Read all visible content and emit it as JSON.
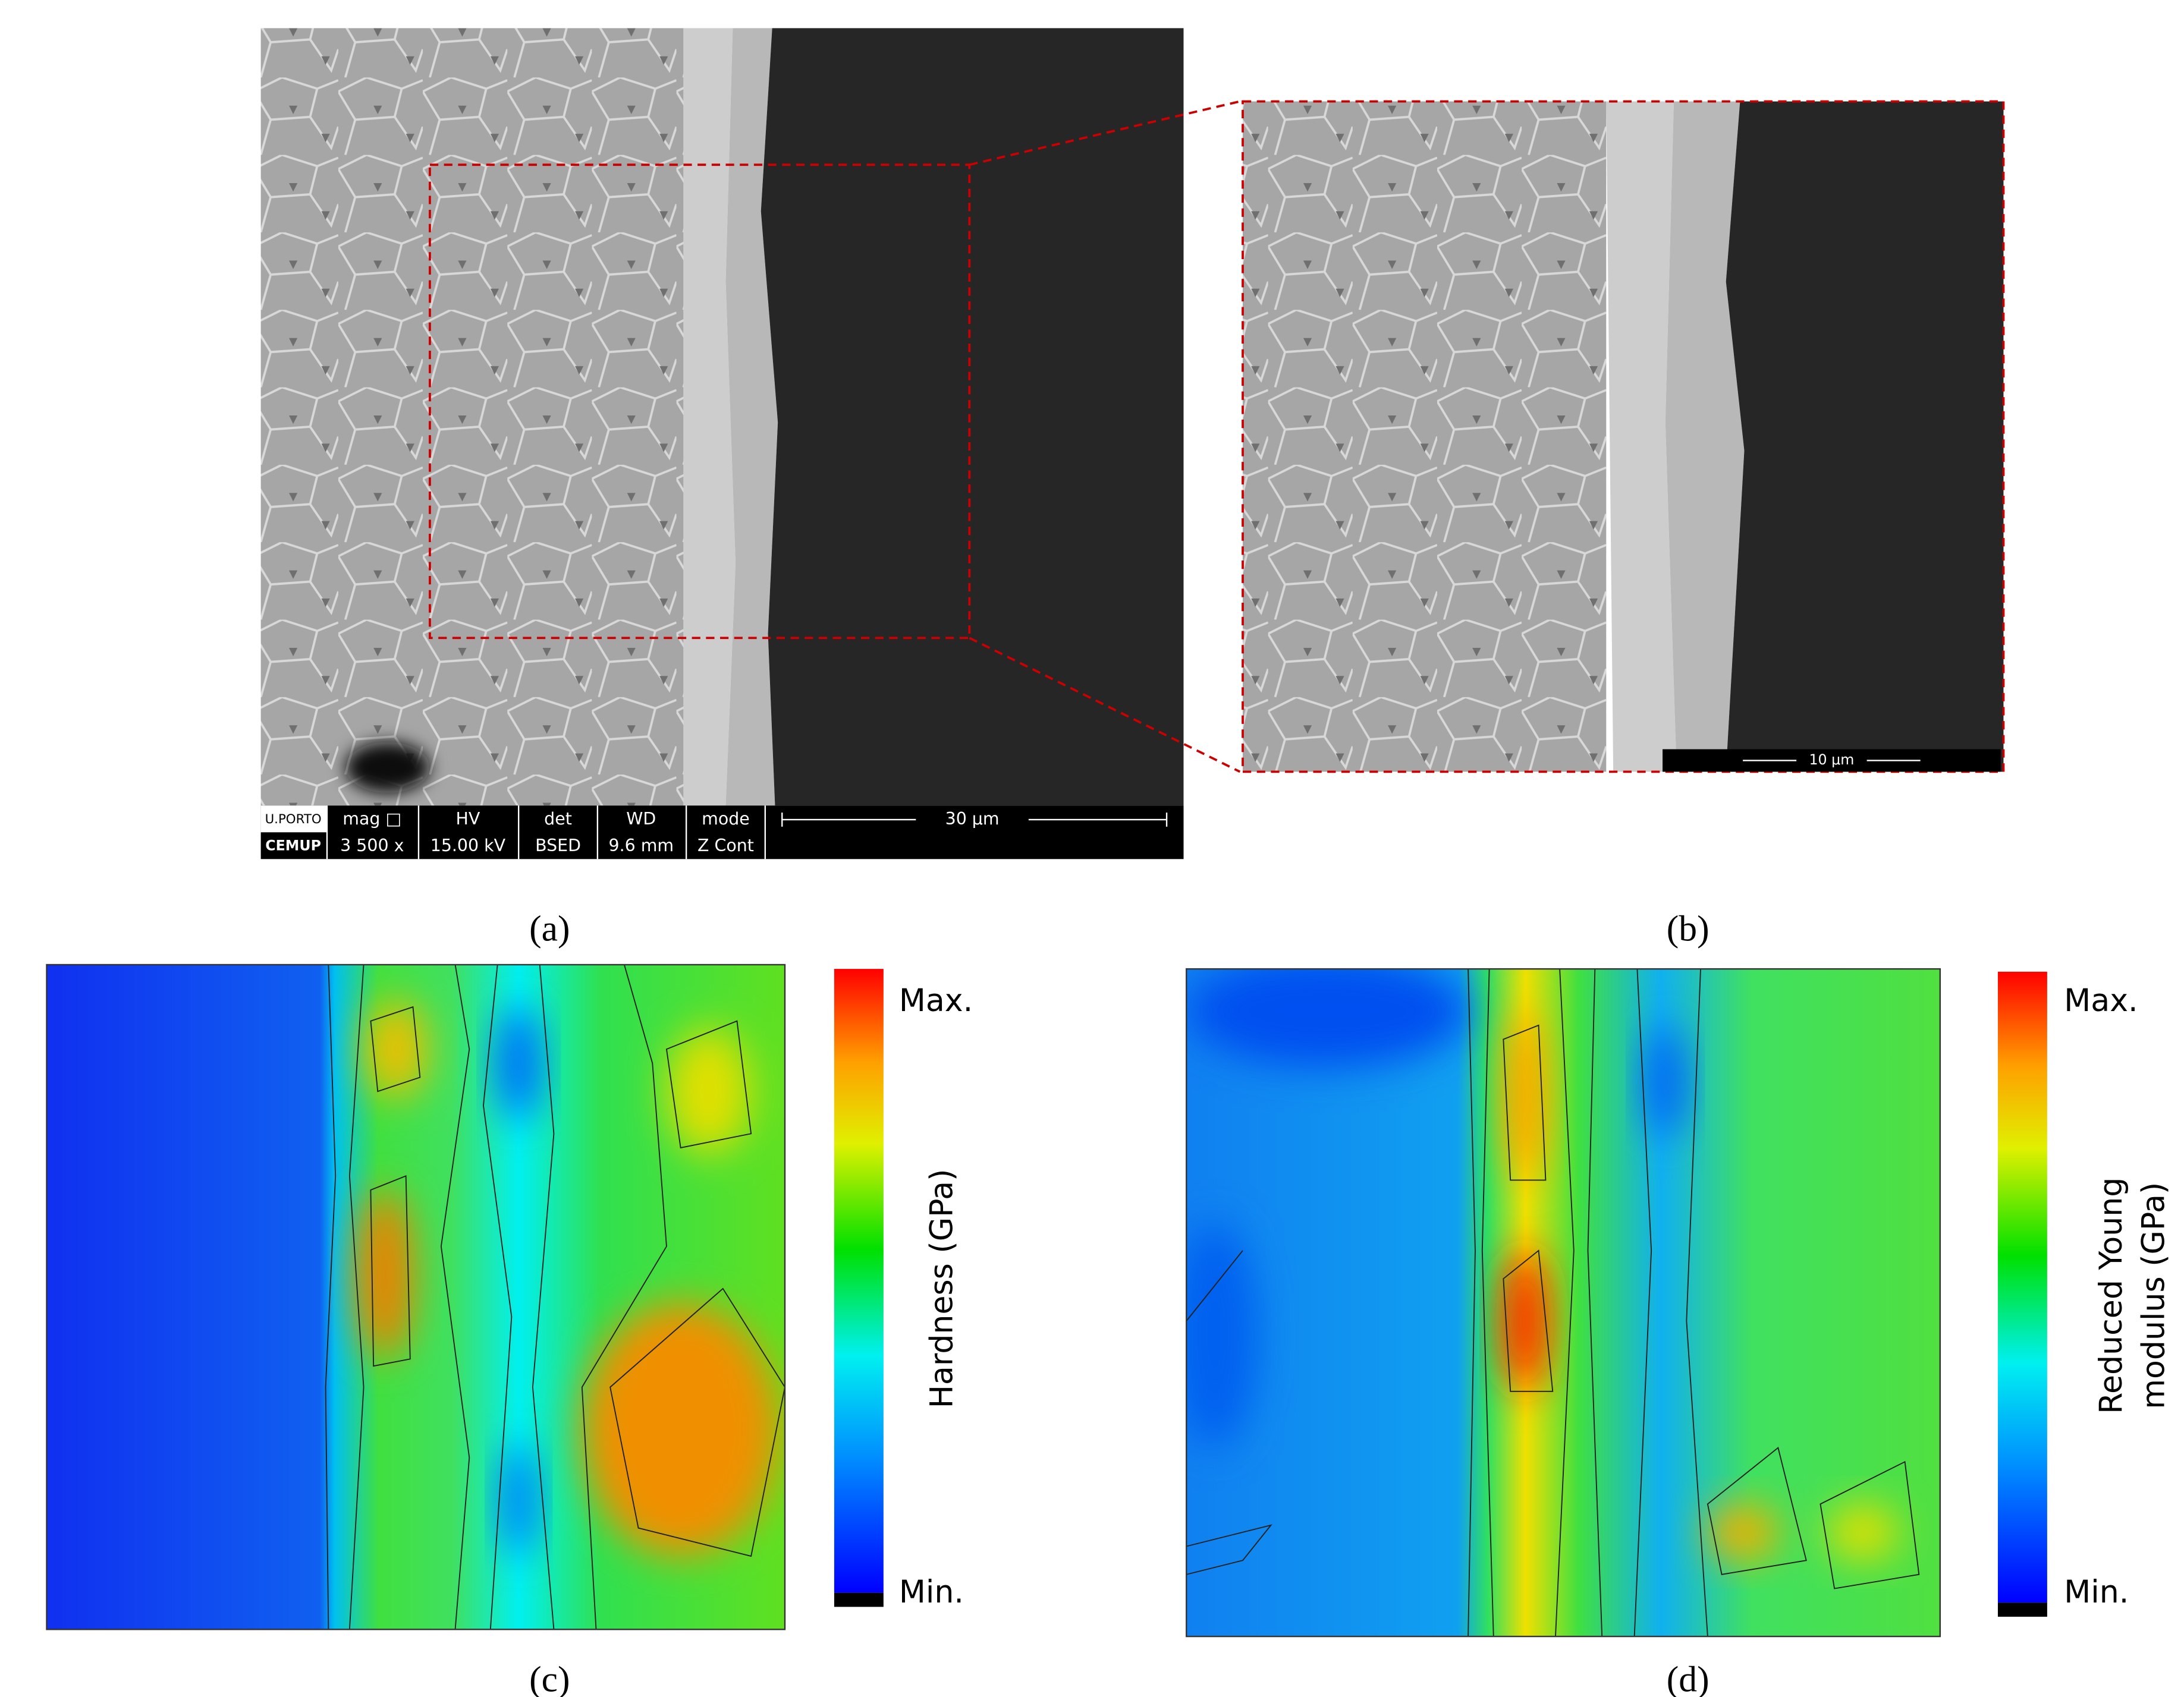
{
  "panel_a": {
    "logo": [
      "U.PORTO",
      "CEMUP"
    ],
    "info_bar": {
      "headers": [
        "mag □",
        "HV",
        "det",
        "WD",
        "mode"
      ],
      "values": [
        "3 500 x",
        "15.00 kV",
        "BSED",
        "9.6 mm",
        "Z Cont"
      ]
    },
    "scale_bar": "30 μm",
    "label": "(a)"
  },
  "panel_b": {
    "scale_bar": "10 μm",
    "label": "(b)"
  },
  "panel_c": {
    "label": "(c)",
    "colorbar": {
      "max": "Max.",
      "min": "Min.",
      "title": "Hardness (GPa)"
    }
  },
  "panel_d": {
    "label": "(d)",
    "colorbar": {
      "max": "Max.",
      "min": "Min.",
      "title": [
        "Reduced Young",
        "modulus (GPa)"
      ]
    }
  }
}
